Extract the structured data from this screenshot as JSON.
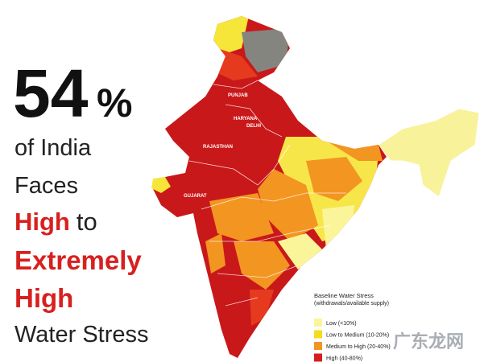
{
  "headline": {
    "number": 54,
    "unit": "%"
  },
  "lines": [
    [
      {
        "text": "of India",
        "highlight": false
      }
    ],
    [
      {
        "text": "Faces",
        "highlight": false
      }
    ],
    [
      {
        "text": "High",
        "highlight": true
      },
      {
        "text": "to",
        "highlight": false
      }
    ],
    [
      {
        "text": "Extremely",
        "highlight": true
      }
    ],
    [
      {
        "text": "High",
        "highlight": true
      }
    ],
    [
      {
        "text": "Water Stress",
        "highlight": false
      }
    ]
  ],
  "map_labels": [
    "PUNJAB",
    "HARYANA",
    "DELHI",
    "RAJASTHAN",
    "GUJARAT"
  ],
  "legend": {
    "title": "Baseline Water Stress",
    "subtitle": "(withdrawals/available supply)",
    "items": [
      {
        "label": "Low (<10%)",
        "color": "#fbf59a"
      },
      {
        "label": "Low to Medium (10-20%)",
        "color": "#f6dc1e"
      },
      {
        "label": "Medium to High (20-40%)",
        "color": "#f39521"
      },
      {
        "label": "High (40-80%)",
        "color": "#d41f1c"
      }
    ]
  },
  "watermark": "广东龙网"
}
